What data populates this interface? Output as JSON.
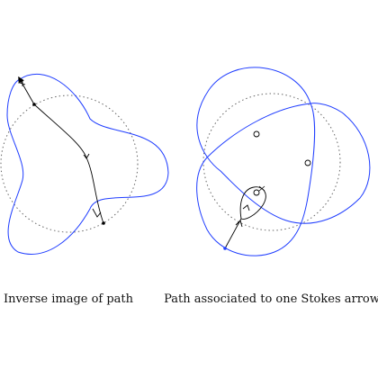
{
  "captions": {
    "left": "Inverse image of path",
    "right": "Path associated to one Stokes arrow"
  },
  "colors": {
    "curve": "#1f3dff",
    "path": "#000000",
    "dotted_circle": "#555555",
    "background": "#ffffff"
  },
  "panels": [
    {
      "id": "left",
      "content": "dotted circle, blue three-lobed curve, black path with arrowheads"
    },
    {
      "id": "right",
      "content": "dotted circle, blue curve with lobes, three small open circles, black loop path with arrows"
    }
  ]
}
